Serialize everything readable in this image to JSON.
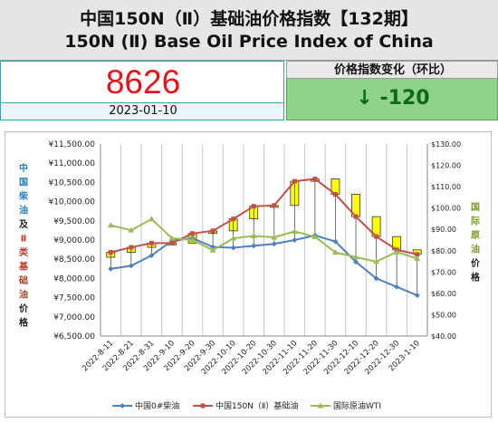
{
  "header": {
    "title_cn": "中国150N（Ⅱ）基础油价格指数【132期】",
    "title_en": "150N (Ⅱ) Base Oil Price Index of China"
  },
  "index": {
    "value": "8626",
    "date": "2023-01-10"
  },
  "change": {
    "label": "价格指数变化（环比）",
    "value": "↓ -120",
    "arrow_icon": "down-arrow-icon"
  },
  "colors": {
    "index_red": "#e8121c",
    "change_green_bg": "#8fd28a",
    "change_green_text": "#0d6b12",
    "diesel": "#4f81bd",
    "base_oil": "#c0504d",
    "wti": "#9bbb59",
    "candle_fill": "#ffff00"
  },
  "chart_data": {
    "type": "line",
    "x": [
      "2022-8-11",
      "2022-8-21",
      "2022-8-31",
      "2022-9-10",
      "2022-9-20",
      "2022-9-30",
      "2022-10-10",
      "2022-10-20",
      "2022-10-30",
      "2022-11-10",
      "2022-11-20",
      "2022-11-30",
      "2022-12-10",
      "2022-12-20",
      "2022-12-30",
      "2023-1-10"
    ],
    "series": [
      {
        "name": "中国0#柴油",
        "axis": "left",
        "color": "#4f81bd",
        "marker": "diamond",
        "values": [
          8250,
          8330,
          8600,
          8980,
          9050,
          8820,
          8800,
          8850,
          8900,
          9000,
          9120,
          8960,
          8430,
          8000,
          7780,
          7560
        ]
      },
      {
        "name": "中国150N（Ⅱ）基础油",
        "axis": "left",
        "color": "#c0504d",
        "marker": "square",
        "values": [
          8680,
          8810,
          8920,
          8920,
          9170,
          9240,
          9550,
          9880,
          9900,
          10530,
          10590,
          10190,
          9610,
          9090,
          8746,
          8626
        ]
      },
      {
        "name": "国际原油WTI",
        "axis": "right",
        "color": "#9bbb59",
        "marker": "triangle",
        "values": [
          91.9,
          89.6,
          94.8,
          85.8,
          85.1,
          80.2,
          85.8,
          86.9,
          86.3,
          89.0,
          86.5,
          79.2,
          77.0,
          74.9,
          79.4,
          76.3
        ]
      }
    ],
    "left_axis": {
      "ylim": [
        6500,
        11500
      ],
      "ticks": [
        "¥11,500.00",
        "¥11,000.00",
        "¥10,500.00",
        "¥10,000.00",
        "¥9,500.00",
        "¥9,000.00",
        "¥8,500.00",
        "¥8,000.00",
        "¥7,500.00",
        "¥7,000.00",
        "¥6,500.00"
      ],
      "label_chars": [
        "中",
        "国",
        "柴",
        "油",
        "及",
        "Ⅱ",
        "类",
        "基",
        "础",
        "油",
        "价",
        "格"
      ]
    },
    "right_axis": {
      "ylim": [
        40,
        130
      ],
      "ticks": [
        "$130.00",
        "$120.00",
        "$110.00",
        "$100.00",
        "$90.00",
        "$80.00",
        "$70.00",
        "$60.00",
        "$50.00",
        "$40.00"
      ],
      "label_chars": [
        "国",
        "际",
        "原",
        "油",
        "价",
        "格"
      ]
    },
    "legend_position": "bottom",
    "grid": "vertical"
  }
}
